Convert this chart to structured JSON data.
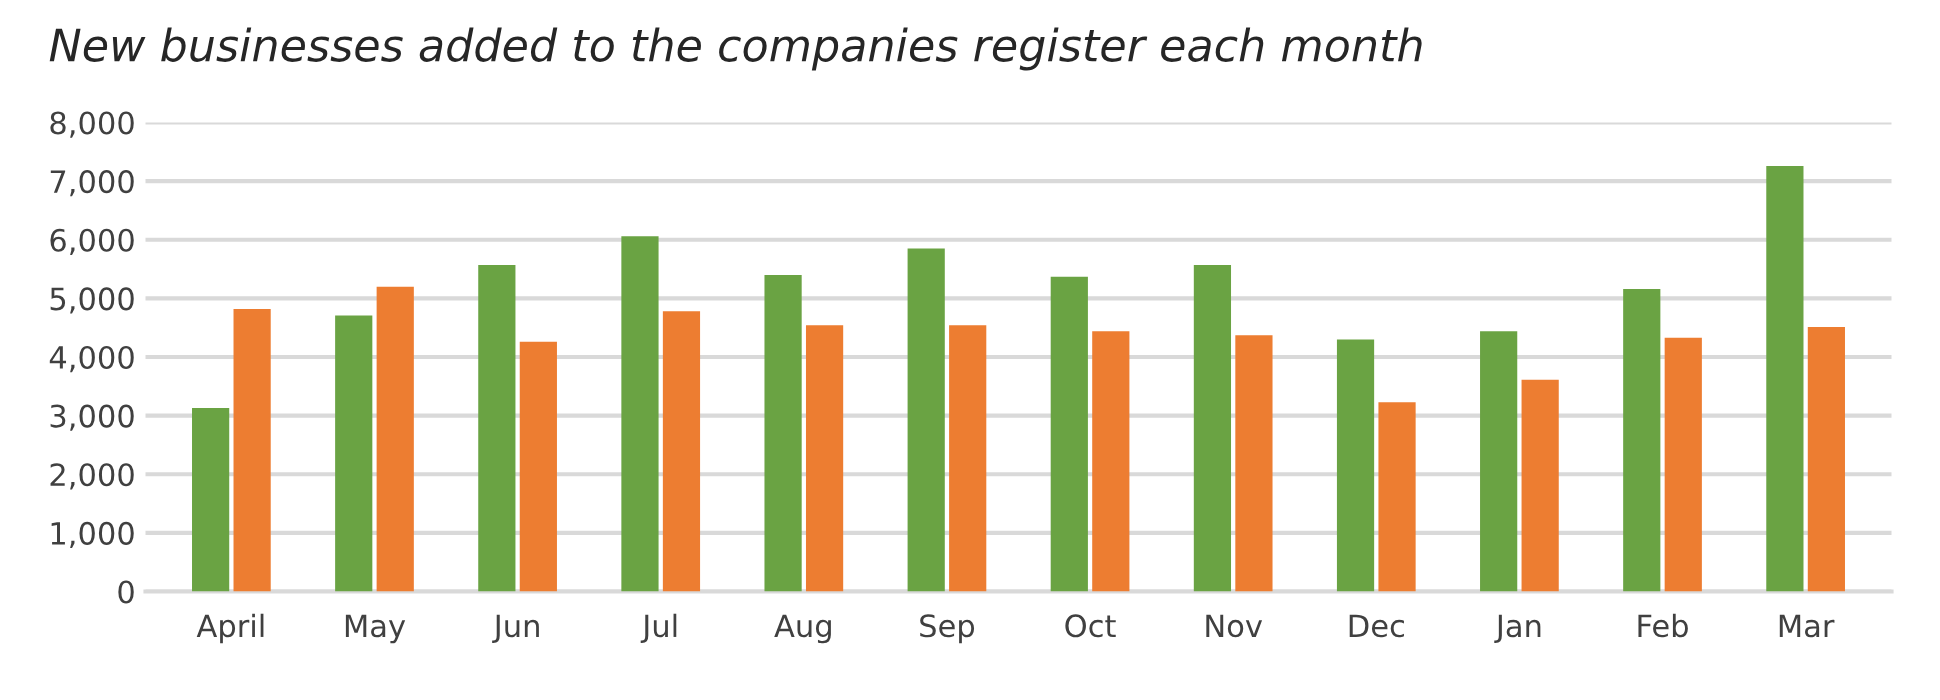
{
  "chart_data": {
    "type": "bar",
    "title": "New businesses added to the companies register each month",
    "categories": [
      "April",
      "May",
      "Jun",
      "Jul",
      "Aug",
      "Sep",
      "Oct",
      "Nov",
      "Dec",
      "Jan",
      "Feb",
      "Mar"
    ],
    "series": [
      {
        "color": "#6aa343",
        "values": [
          3130,
          4710,
          5570,
          6060,
          5400,
          5850,
          5370,
          5570,
          4300,
          4440,
          5160,
          7260
        ]
      },
      {
        "color": "#ed7d31",
        "values": [
          4820,
          5200,
          4260,
          4780,
          4540,
          4540,
          4440,
          4370,
          3230,
          3610,
          4330,
          4510
        ]
      }
    ],
    "ylim": [
      0,
      8000
    ],
    "yticks": [
      {
        "value": 0,
        "label": "0"
      },
      {
        "value": 1000,
        "label": "1,000"
      },
      {
        "value": 2000,
        "label": "2,000"
      },
      {
        "value": 3000,
        "label": "3,000"
      },
      {
        "value": 4000,
        "label": "4,000"
      },
      {
        "value": 5000,
        "label": "5,000"
      },
      {
        "value": 6000,
        "label": "6,000"
      },
      {
        "value": 7000,
        "label": "7,000"
      },
      {
        "value": 8000,
        "label": "8,000"
      }
    ],
    "grid": "y"
  }
}
